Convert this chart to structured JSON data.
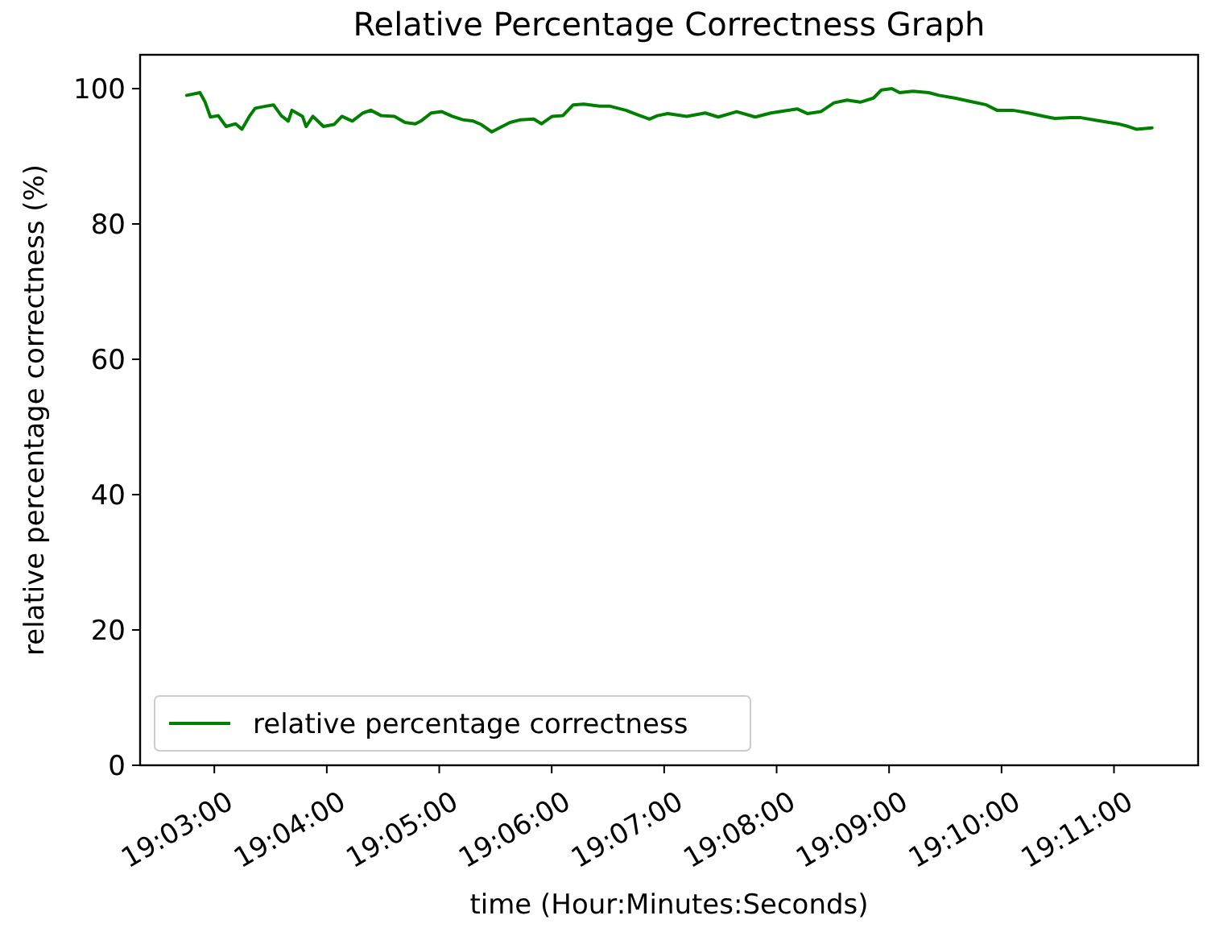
{
  "chart_data": {
    "type": "line",
    "title": "Relative Percentage Correctness Graph",
    "xlabel": "time (Hour:Minutes:Seconds)",
    "ylabel": "relative percentage correctness (%)",
    "x": [
      19.04591,
      19.04787,
      19.04864,
      19.04942,
      19.05058,
      19.05175,
      19.05316,
      19.05409,
      19.05526,
      19.05605,
      19.0576,
      19.05877,
      19.05993,
      19.06096,
      19.0615,
      19.06307,
      19.0636,
      19.06461,
      19.06618,
      19.06774,
      19.06891,
      19.07045,
      19.07202,
      19.07319,
      19.07475,
      19.0767,
      19.07826,
      19.0798,
      19.0806,
      19.08214,
      19.08371,
      19.08527,
      19.08682,
      19.08838,
      19.08955,
      19.09112,
      19.09266,
      19.09383,
      19.0954,
      19.09734,
      19.0985,
      19.10007,
      19.10164,
      19.10318,
      19.10475,
      19.10708,
      19.10865,
      19.11099,
      19.11253,
      19.11449,
      19.11566,
      19.1172,
      19.12001,
      19.12275,
      19.12469,
      19.12742,
      19.13016,
      19.13249,
      19.13637,
      19.13794,
      19.13988,
      19.14184,
      19.14378,
      19.14572,
      19.14769,
      19.14886,
      19.1504,
      19.15157,
      19.15353,
      19.15587,
      19.15741,
      19.15975,
      19.16209,
      19.16442,
      19.16599,
      19.16833,
      19.17066,
      19.173,
      19.17457,
      19.17691,
      19.17845,
      19.18079,
      19.18392,
      19.18546,
      19.18663,
      19.18897
    ],
    "series": [
      {
        "name": "relative percentage correctness",
        "color": "#008000",
        "values": [
          99.0,
          99.4,
          98.0,
          95.8,
          96.0,
          94.4,
          94.8,
          94.0,
          96.0,
          97.1,
          97.4,
          97.6,
          96.0,
          95.2,
          96.8,
          95.9,
          94.4,
          95.9,
          94.4,
          94.7,
          95.9,
          95.2,
          96.4,
          96.8,
          96.0,
          95.9,
          95.0,
          94.8,
          95.2,
          96.4,
          96.6,
          95.9,
          95.4,
          95.2,
          94.7,
          93.6,
          94.4,
          95.0,
          95.4,
          95.5,
          94.8,
          95.9,
          96.0,
          97.6,
          97.7,
          97.4,
          97.4,
          96.8,
          96.2,
          95.5,
          96.0,
          96.3,
          95.9,
          96.4,
          95.8,
          96.6,
          95.8,
          96.4,
          97.0,
          96.3,
          96.6,
          97.9,
          98.3,
          98.0,
          98.6,
          99.8,
          100.0,
          99.4,
          99.6,
          99.4,
          99.0,
          98.6,
          98.1,
          97.6,
          96.8,
          96.8,
          96.4,
          95.9,
          95.6,
          95.7,
          95.7,
          95.3,
          94.8,
          94.4,
          94.0,
          94.2
        ]
      }
    ],
    "xlim": [
      19.039,
      19.1958
    ],
    "xticks": [
      {
        "value": 19.05,
        "label": "19:03:00"
      },
      {
        "value": 19.066667,
        "label": "19:04:00"
      },
      {
        "value": 19.083333,
        "label": "19:05:00"
      },
      {
        "value": 19.1,
        "label": "19:06:00"
      },
      {
        "value": 19.116667,
        "label": "19:07:00"
      },
      {
        "value": 19.133333,
        "label": "19:08:00"
      },
      {
        "value": 19.15,
        "label": "19:09:00"
      },
      {
        "value": 19.166667,
        "label": "19:10:00"
      },
      {
        "value": 19.183333,
        "label": "19:11:00"
      }
    ],
    "ylim": [
      0,
      105
    ],
    "yticks": [
      0,
      20,
      40,
      60,
      80,
      100
    ],
    "legend": "bottom left",
    "line_style": "solid",
    "marker": "none",
    "grid": false
  }
}
